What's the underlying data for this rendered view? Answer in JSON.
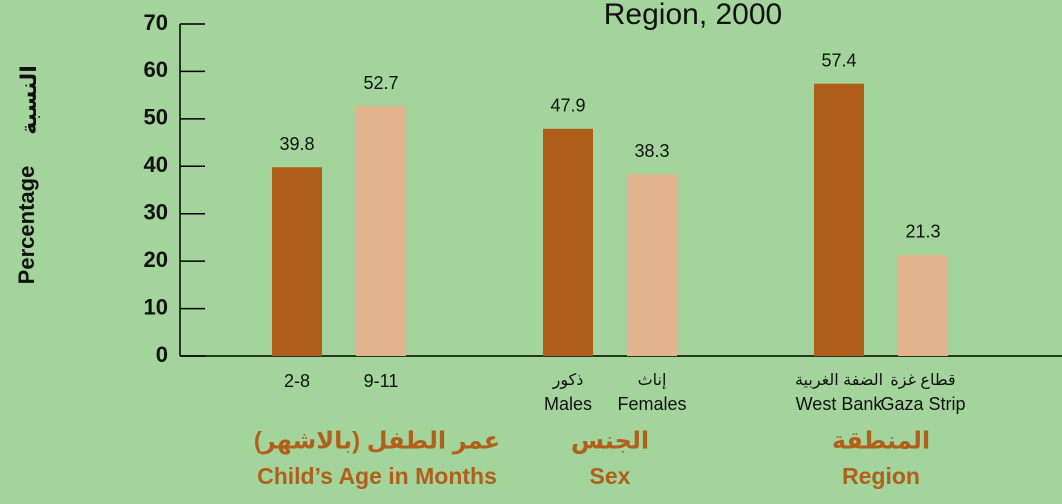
{
  "chart_data": {
    "type": "bar",
    "title": "Region, 2000",
    "y_label": "Percentage",
    "y_label_ar": "النسبة",
    "categories": [
      "2-8",
      "9-11",
      "Males",
      "Females",
      "West Bank",
      "Gaza Strip"
    ],
    "categories_ar": [
      null,
      null,
      "ذكور",
      "إناث",
      "الضفة الغربية",
      "قطاع غزة"
    ],
    "values": [
      39.8,
      52.7,
      47.9,
      38.3,
      57.4,
      21.3
    ],
    "colors": [
      "#ae5e18",
      "#e3b48e",
      "#ae5e18",
      "#e3b48e",
      "#ae5e18",
      "#e3b48e"
    ],
    "groups": [
      {
        "label_ar": "عمر الطفل (بالاشهر)",
        "label_en": "Child’s Age in Months"
      },
      {
        "label_ar": "الجنس",
        "label_en": "Sex"
      },
      {
        "label_ar": "المنطقة",
        "label_en": "Region"
      }
    ],
    "ylim": [
      0,
      70
    ],
    "yticks": [
      0,
      10,
      20,
      30,
      40,
      50,
      60,
      70
    ]
  }
}
